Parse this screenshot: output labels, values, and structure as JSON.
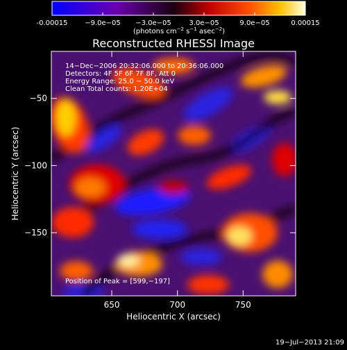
{
  "colorbar": {
    "ticks": [
      "-0.00015",
      "−9.0e−05",
      "−3.0e−05",
      "3.0e−05",
      "9.0e−05",
      "0.00015"
    ],
    "tick_values": [
      -0.00015,
      -9e-05,
      -3e-05,
      3e-05,
      9e-05,
      0.00015
    ],
    "units": "(photons cm",
    "units_exp1": "−2",
    "units_mid": " s",
    "units_exp2": "−1",
    "units_tail": " asec",
    "units_exp3": "−2",
    "units_close": ")",
    "colors": [
      "#0000ff",
      "#6a00b0",
      "#1a0010",
      "#c00000",
      "#ff5000",
      "#ffc000",
      "#ffffe0"
    ]
  },
  "chart_data": {
    "type": "heatmap",
    "title": "Reconstructed RHESSI Image",
    "xlabel": "Heliocentric X (arcsec)",
    "ylabel": "Heliocentric Y (arcsec)",
    "xlim": [
      604,
      790
    ],
    "ylim": [
      -197,
      -15
    ],
    "xticks": [
      650,
      700,
      750
    ],
    "yticks": [
      -50,
      -100,
      -150
    ],
    "xtick_labels": [
      "650",
      "700",
      "750"
    ],
    "ytick_labels": [
      "−50",
      "−100",
      "−150"
    ],
    "info_lines": [
      "14−Dec−2006 20:32:06.000 to 20:36:06.000",
      "Detectors: 4F 5F 6F 7F 8F, Att 0",
      "Energy Range: 25.0 − 50.0 keV",
      "Clean    Total counts: 1.20E+04"
    ],
    "peak_label": "Position of Peak = [599,−197]"
  },
  "timestamp": "19−Jul−2013 21:09"
}
